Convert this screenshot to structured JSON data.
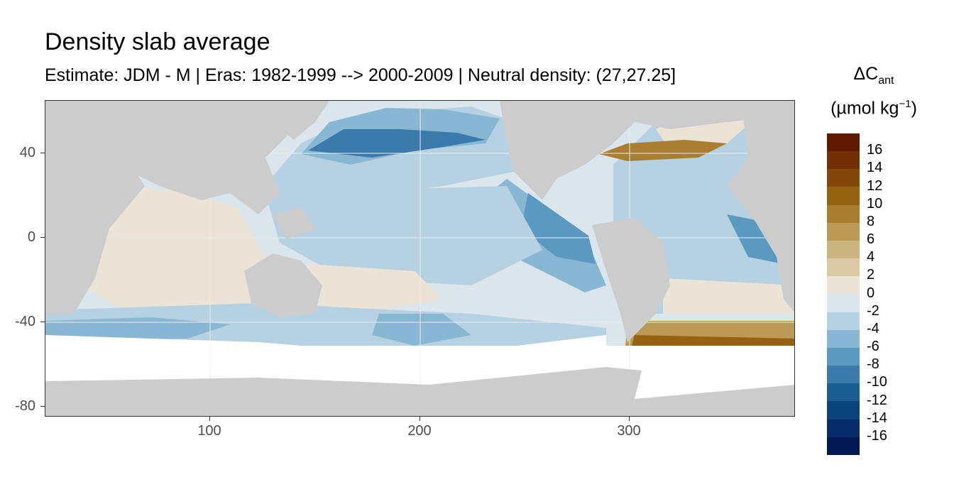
{
  "title": "Density slab average",
  "subtitle": "Estimate: JDM - M | Eras: 1982-1999 --> 2000-2009 | Neutral density: (27,27.25]",
  "legend": {
    "title_line1": "ΔC",
    "title_sub": "ant",
    "title_line2": "(µmol kg",
    "title_sup": "−1",
    "title_close": ")",
    "labels": [
      "16",
      "14",
      "12",
      "10",
      "8",
      "6",
      "4",
      "2",
      "0",
      "-2",
      "-4",
      "-6",
      "-8",
      "-10",
      "-12",
      "-14",
      "-16"
    ],
    "colors": [
      "#5f1a00",
      "#732f05",
      "#84470a",
      "#956210",
      "#a97e30",
      "#bb9a56",
      "#ccb47e",
      "#dccaa6",
      "#ebe3d5",
      "#dbe6ec",
      "#b6d1e2",
      "#88b7d3",
      "#5c99c1",
      "#3a7bab",
      "#1a5e94",
      "#0b437c",
      "#062c69",
      "#031755"
    ]
  },
  "colors": {
    "land": "#cccccc",
    "ice": "#ffffff",
    "grid": "#ebebeb"
  },
  "axes": {
    "x_ticks": [
      "100",
      "200",
      "300"
    ],
    "y_ticks": [
      "40",
      "0",
      "-40",
      "-80"
    ]
  }
}
